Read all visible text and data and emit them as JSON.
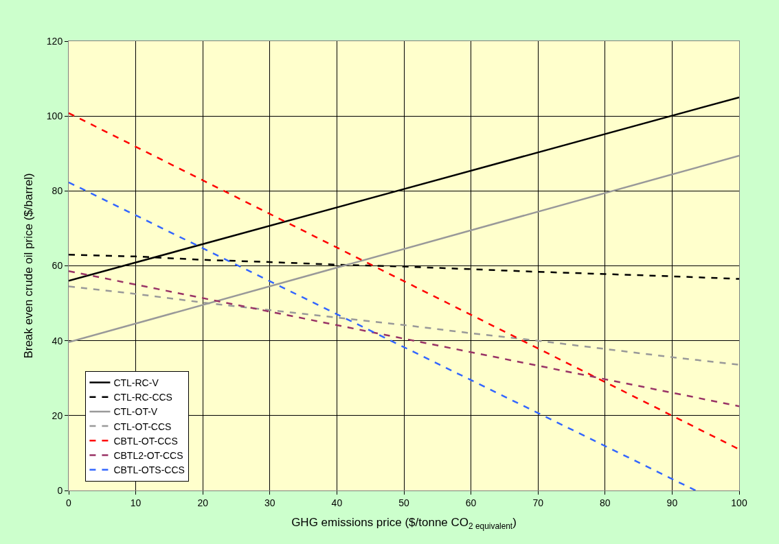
{
  "chart_data": {
    "type": "line",
    "xlabel": "GHG emissions price ($/tonne CO$_{2 equivalent}$)",
    "ylabel": "Break even crude oil price ($/barrel)",
    "xlim": [
      0,
      100
    ],
    "xticks": [
      0,
      10,
      20,
      30,
      40,
      50,
      60,
      70,
      80,
      90,
      100
    ],
    "ylim": [
      0,
      120
    ],
    "yticks": [
      0,
      20,
      40,
      60,
      80,
      100,
      120
    ],
    "grid": true,
    "legend": "bottom left",
    "marker": "none",
    "series": [
      {
        "name": "CTL-RC-V",
        "color": "#000000",
        "line_style": "solid",
        "x": [
          0,
          100
        ],
        "values": [
          56,
          105
        ]
      },
      {
        "name": "CTL-RC-CCS",
        "color": "#000000",
        "line_style": "dashed",
        "x": [
          0,
          10,
          20,
          30,
          40,
          50,
          60,
          70,
          80,
          90,
          100
        ],
        "values": [
          63,
          62.5,
          61.6,
          61,
          60.3,
          59.8,
          59.1,
          58.4,
          57.8,
          57.2,
          56.5
        ]
      },
      {
        "name": "CTL-OT-V",
        "color": "#999999",
        "line_style": "solid",
        "x": [
          0,
          100
        ],
        "values": [
          39.6,
          89.4
        ]
      },
      {
        "name": "CTL-OT-CCS",
        "color": "#999999",
        "line_style": "dashed",
        "x": [
          0,
          10,
          20,
          30,
          40,
          50,
          60,
          70,
          80,
          90,
          100
        ],
        "values": [
          54.5,
          52.5,
          50.2,
          48.2,
          46.2,
          44.2,
          42,
          40,
          37.8,
          35.6,
          33.6
        ]
      },
      {
        "name": "CBTL-OT-CCS",
        "color": "#ff0000",
        "line_style": "dashed",
        "x": [
          0,
          100
        ],
        "values": [
          100.8,
          11
        ]
      },
      {
        "name": "CBTL2-OT-CCS",
        "color": "#993366",
        "line_style": "dashed",
        "x": [
          0,
          100
        ],
        "values": [
          58.6,
          22.5
        ]
      },
      {
        "name": "CBTL-OTS-CCS",
        "color": "#3366ff",
        "line_style": "dashed",
        "x": [
          0,
          93.5
        ],
        "values": [
          82.3,
          0
        ]
      }
    ]
  }
}
